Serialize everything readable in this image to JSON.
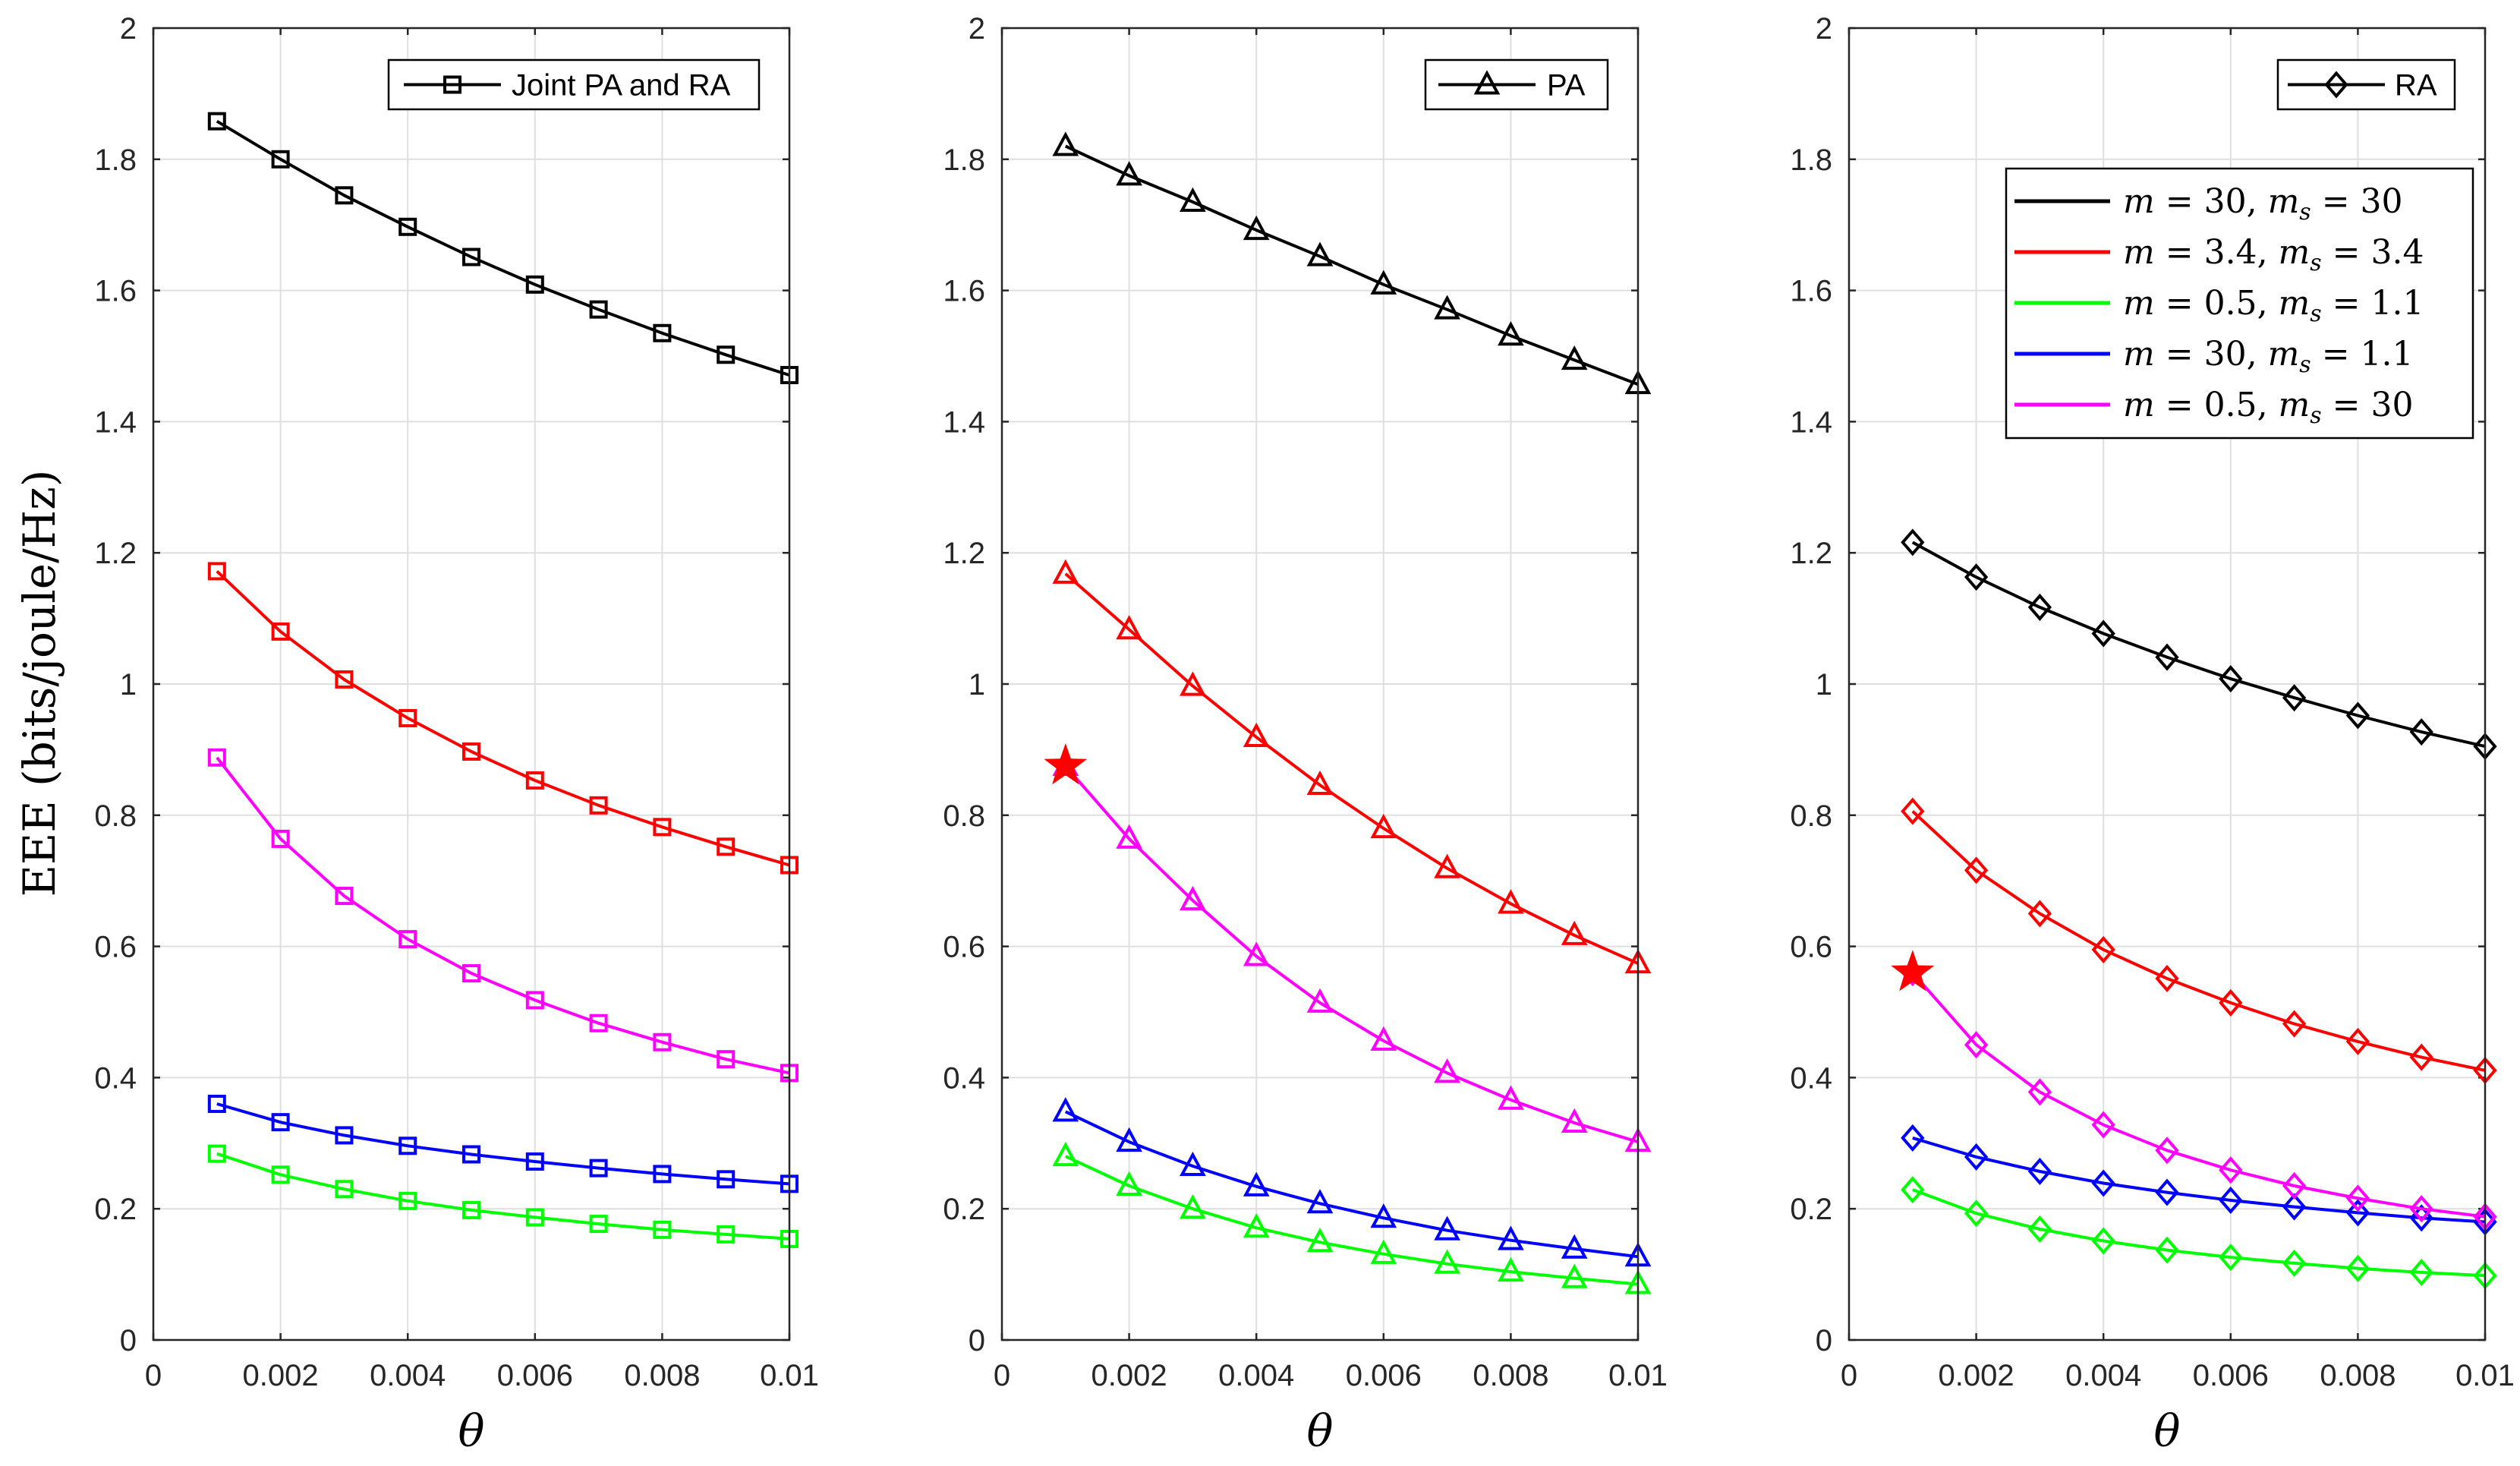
{
  "chart_data": [
    {
      "type": "line",
      "panel": "left",
      "legend_label": "Joint PA and RA",
      "marker": "square",
      "xlabel": "θ",
      "ylabel": "EEE (bits/joule/Hz)",
      "xlim": [
        0,
        0.01
      ],
      "ylim": [
        0,
        2
      ],
      "xticks": [
        "0",
        "0.002",
        "0.004",
        "0.006",
        "0.008",
        "0.01"
      ],
      "yticks": [
        "0",
        "0.2",
        "0.4",
        "0.6",
        "0.8",
        "1",
        "1.2",
        "1.4",
        "1.6",
        "1.8",
        "2"
      ],
      "x": [
        0.001,
        0.002,
        0.003,
        0.004,
        0.005,
        0.006,
        0.007,
        0.008,
        0.009,
        0.01
      ],
      "series": [
        {
          "name": "m = 30, m_s = 30",
          "color": "#000000",
          "values": [
            1.858,
            1.8,
            1.745,
            1.697,
            1.651,
            1.609,
            1.571,
            1.535,
            1.502,
            1.471
          ]
        },
        {
          "name": "m = 3.4, m_s = 3.4",
          "color": "#ff0000",
          "values": [
            1.172,
            1.08,
            1.007,
            0.948,
            0.897,
            0.853,
            0.815,
            0.782,
            0.752,
            0.724
          ]
        },
        {
          "name": "m = 0.5, m_s = 1.1",
          "color": "#00ff00",
          "values": [
            0.284,
            0.252,
            0.23,
            0.212,
            0.198,
            0.187,
            0.177,
            0.168,
            0.161,
            0.154
          ]
        },
        {
          "name": "m = 30, m_s = 1.1",
          "color": "#0000ff",
          "values": [
            0.36,
            0.332,
            0.312,
            0.296,
            0.283,
            0.272,
            0.262,
            0.253,
            0.245,
            0.238
          ]
        },
        {
          "name": "m = 0.5, m_s = 30",
          "color": "#ff00ff",
          "values": [
            0.888,
            0.764,
            0.677,
            0.611,
            0.559,
            0.518,
            0.483,
            0.454,
            0.428,
            0.407
          ]
        }
      ]
    },
    {
      "type": "line",
      "panel": "middle",
      "legend_label": "PA",
      "marker": "triangle",
      "xlabel": "θ",
      "xlim": [
        0,
        0.01
      ],
      "ylim": [
        0,
        2
      ],
      "xticks": [
        "0",
        "0.002",
        "0.004",
        "0.006",
        "0.008",
        "0.01"
      ],
      "yticks": [
        "0",
        "0.2",
        "0.4",
        "0.6",
        "0.8",
        "1",
        "1.2",
        "1.4",
        "1.6",
        "1.8",
        "2"
      ],
      "x": [
        0.001,
        0.002,
        0.003,
        0.004,
        0.005,
        0.006,
        0.007,
        0.008,
        0.009,
        0.01
      ],
      "series": [
        {
          "name": "m = 30, m_s = 30",
          "color": "#000000",
          "values": [
            1.82,
            1.775,
            1.735,
            1.692,
            1.652,
            1.609,
            1.571,
            1.531,
            1.494,
            1.457
          ]
        },
        {
          "name": "m = 3.4, m_s = 3.4",
          "color": "#ff0000",
          "values": [
            1.168,
            1.083,
            0.997,
            0.919,
            0.846,
            0.78,
            0.719,
            0.665,
            0.617,
            0.574
          ]
        },
        {
          "name": "m = 0.5, m_s = 1.1",
          "color": "#00ff00",
          "values": [
            0.28,
            0.235,
            0.2,
            0.171,
            0.149,
            0.131,
            0.116,
            0.104,
            0.094,
            0.085
          ]
        },
        {
          "name": "m = 30, m_s = 1.1",
          "color": "#0000ff",
          "values": [
            0.348,
            0.302,
            0.265,
            0.234,
            0.208,
            0.186,
            0.167,
            0.152,
            0.139,
            0.127
          ]
        },
        {
          "name": "m = 0.5, m_s = 30",
          "color": "#ff00ff",
          "values": [
            0.875,
            0.764,
            0.67,
            0.585,
            0.514,
            0.456,
            0.407,
            0.366,
            0.331,
            0.302
          ]
        }
      ],
      "star": {
        "x": 0.001,
        "y": 0.875,
        "color": "#ff0000"
      }
    },
    {
      "type": "line",
      "panel": "right",
      "legend_label": "RA",
      "marker": "diamond",
      "xlabel": "θ",
      "xlim": [
        0,
        0.01
      ],
      "ylim": [
        0,
        2
      ],
      "xticks": [
        "0",
        "0.002",
        "0.004",
        "0.006",
        "0.008",
        "0.01"
      ],
      "yticks": [
        "0",
        "0.2",
        "0.4",
        "0.6",
        "0.8",
        "1",
        "1.2",
        "1.4",
        "1.6",
        "1.8",
        "2"
      ],
      "x": [
        0.001,
        0.002,
        0.003,
        0.004,
        0.005,
        0.006,
        0.007,
        0.008,
        0.009,
        0.01
      ],
      "series": [
        {
          "name": "m = 30, m_s = 30",
          "color": "#000000",
          "values": [
            1.216,
            1.163,
            1.117,
            1.077,
            1.041,
            1.008,
            0.979,
            0.952,
            0.927,
            0.905
          ]
        },
        {
          "name": "m = 3.4, m_s = 3.4",
          "color": "#ff0000",
          "values": [
            0.806,
            0.716,
            0.65,
            0.595,
            0.551,
            0.514,
            0.482,
            0.455,
            0.431,
            0.411
          ]
        },
        {
          "name": "m = 0.5, m_s = 1.1",
          "color": "#00ff00",
          "values": [
            0.229,
            0.193,
            0.169,
            0.151,
            0.137,
            0.126,
            0.117,
            0.109,
            0.103,
            0.098
          ]
        },
        {
          "name": "m = 30, m_s = 1.1",
          "color": "#0000ff",
          "values": [
            0.308,
            0.279,
            0.257,
            0.239,
            0.225,
            0.213,
            0.203,
            0.194,
            0.186,
            0.18
          ]
        },
        {
          "name": "m = 0.5, m_s = 30",
          "color": "#ff00ff",
          "values": [
            0.56,
            0.45,
            0.378,
            0.328,
            0.289,
            0.259,
            0.235,
            0.216,
            0.2,
            0.188
          ]
        }
      ],
      "star": {
        "x": 0.001,
        "y": 0.56,
        "color": "#ff0000"
      },
      "series_legend": [
        {
          "m": "30",
          "ms": "30",
          "color": "#000000"
        },
        {
          "m": "3.4",
          "ms": "3.4",
          "color": "#ff0000"
        },
        {
          "m": "0.5",
          "ms": "1.1",
          "color": "#00ff00"
        },
        {
          "m": "30",
          "ms": "1.1",
          "color": "#0000ff"
        },
        {
          "m": "0.5",
          "ms": "30",
          "color": "#ff00ff"
        }
      ]
    }
  ]
}
